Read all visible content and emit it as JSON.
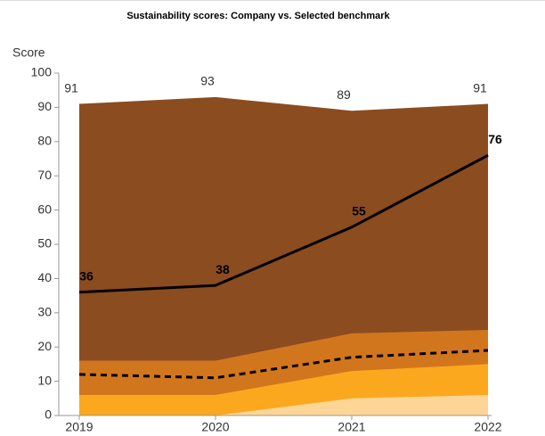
{
  "chart_data": {
    "type": "area",
    "title": "Sustainability scores: Company vs. Selected benchmark",
    "y_label": "Score",
    "x": [
      2019,
      2020,
      2021,
      2022
    ],
    "xlim": [
      2019,
      2022
    ],
    "xticks": [
      2019,
      2020,
      2021,
      2022
    ],
    "ylim": [
      0,
      100
    ],
    "yticks": [
      0,
      10,
      20,
      30,
      40,
      50,
      60,
      70,
      80,
      90,
      100
    ],
    "grid": false,
    "series": [
      {
        "type": "area",
        "color": "#8b4c20",
        "values": [
          91,
          93,
          89,
          91
        ],
        "show_labels": true
      },
      {
        "type": "area",
        "color": "#d2761e",
        "values": [
          16,
          16,
          24,
          25
        ]
      },
      {
        "type": "area",
        "color": "#fba81f",
        "values": [
          6,
          6,
          13,
          15
        ]
      },
      {
        "type": "area",
        "color": "#fcd597",
        "values": [
          0,
          0,
          5,
          6
        ]
      },
      {
        "type": "line",
        "color": "#000000",
        "dashed": true,
        "values": [
          12,
          11,
          17,
          19
        ]
      },
      {
        "type": "line",
        "color": "#000000",
        "dashed": false,
        "values": [
          36,
          38,
          55,
          76
        ],
        "show_labels": true,
        "bold_labels": true
      }
    ]
  }
}
